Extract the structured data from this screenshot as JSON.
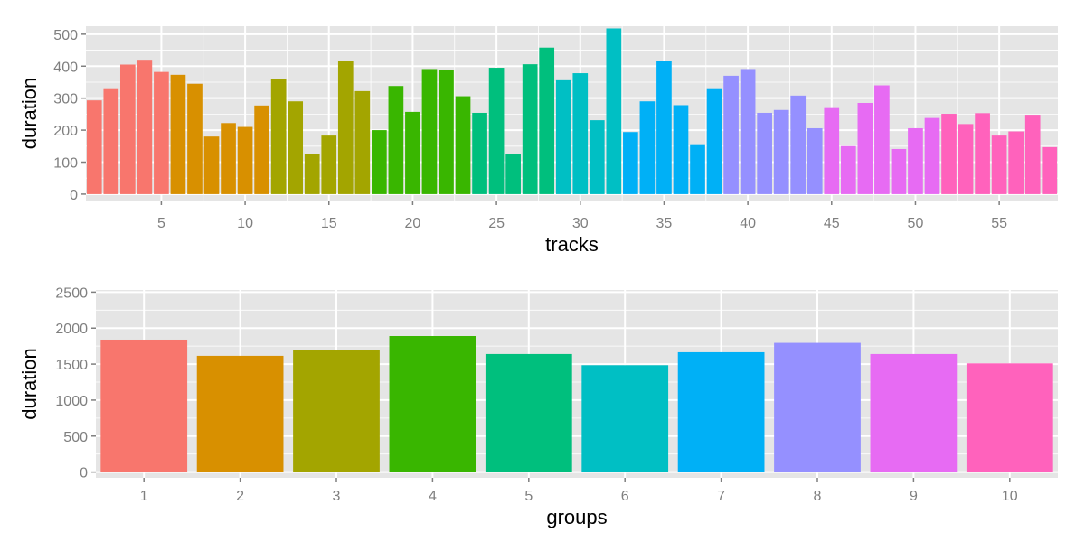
{
  "chart_data": [
    {
      "type": "bar",
      "xlabel": "tracks",
      "ylabel": "duration",
      "xlim": [
        0.5,
        58.5
      ],
      "ylim": [
        -20,
        525
      ],
      "xticks": [
        5,
        10,
        15,
        20,
        25,
        30,
        35,
        40,
        45,
        50,
        55
      ],
      "yticks": [
        0,
        100,
        200,
        300,
        400,
        500
      ],
      "grid": true,
      "x": [
        1,
        2,
        3,
        4,
        5,
        6,
        7,
        8,
        9,
        10,
        11,
        12,
        13,
        14,
        15,
        16,
        17,
        18,
        19,
        20,
        21,
        22,
        23,
        24,
        25,
        26,
        27,
        28,
        29,
        30,
        31,
        32,
        33,
        34,
        35,
        36,
        37,
        38,
        39,
        40,
        41,
        42,
        43,
        44,
        45,
        46,
        47,
        48,
        49,
        50,
        51,
        52,
        53,
        54,
        55,
        56,
        57,
        58
      ],
      "values": [
        293,
        331,
        405,
        420,
        382,
        373,
        345,
        180,
        222,
        210,
        277,
        360,
        290,
        124,
        183,
        417,
        322,
        200,
        338,
        257,
        391,
        388,
        306,
        254,
        395,
        124,
        406,
        458,
        356,
        378,
        231,
        518,
        194,
        290,
        415,
        278,
        156,
        331,
        370,
        391,
        254,
        263,
        308,
        206,
        269,
        150,
        285,
        340,
        141,
        206,
        238,
        251,
        219,
        253,
        183,
        196,
        248,
        147
      ],
      "group_of_track": [
        1,
        1,
        1,
        1,
        1,
        2,
        2,
        2,
        2,
        2,
        2,
        3,
        3,
        3,
        3,
        3,
        3,
        4,
        4,
        4,
        4,
        4,
        4,
        5,
        5,
        5,
        5,
        5,
        6,
        6,
        6,
        6,
        7,
        7,
        7,
        7,
        7,
        7,
        8,
        8,
        8,
        8,
        8,
        8,
        9,
        9,
        9,
        9,
        9,
        9,
        9,
        10,
        10,
        10,
        10,
        10,
        10,
        10
      ]
    },
    {
      "type": "bar",
      "xlabel": "groups",
      "ylabel": "duration",
      "categories": [
        "1",
        "2",
        "3",
        "4",
        "5",
        "6",
        "7",
        "8",
        "9",
        "10"
      ],
      "values": [
        1840,
        1615,
        1695,
        1890,
        1640,
        1485,
        1665,
        1795,
        1640,
        1510
      ],
      "ylim": [
        -80,
        2530
      ],
      "yticks": [
        0,
        500,
        1000,
        1500,
        2000,
        2500
      ],
      "grid": true
    }
  ],
  "palette": [
    "#F8766D",
    "#D89000",
    "#A3A500",
    "#39B600",
    "#00BF7D",
    "#00BFC4",
    "#00B0F6",
    "#9590FF",
    "#E76BF3",
    "#FF62BC"
  ],
  "colors": {
    "panel_background": "#E5E5E5",
    "grid": "#ffffff"
  }
}
